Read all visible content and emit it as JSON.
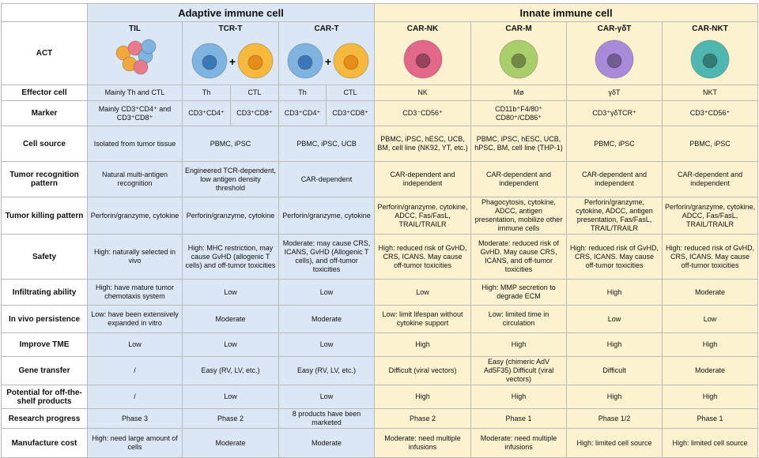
{
  "header": {
    "groups": [
      "Adaptive immune cell",
      "Innate immune cell"
    ],
    "corner": "ACT"
  },
  "table": {
    "columns": [
      "TIL",
      "TCR-T",
      "CAR-T",
      "CAR-NK",
      "CAR-M",
      "CAR-γδT",
      "CAR-NKT"
    ],
    "rows": [
      {
        "label": "Effector cell",
        "cells": [
          "Mainly Th and CTL",
          [
            "Th",
            "CTL"
          ],
          [
            "Th",
            "CTL"
          ],
          "NK",
          "Mø",
          "γδT",
          "NKT"
        ]
      },
      {
        "label": "Marker",
        "cells": [
          "Mainly CD3⁺CD4⁺ and CD3⁺CD8⁺",
          [
            "CD3⁺CD4⁺",
            "CD3⁺CD8⁺"
          ],
          [
            "CD3⁺CD4⁺",
            "CD3⁺CD8⁺"
          ],
          "CD3⁻CD56⁺",
          "CD11b⁺F4/80⁺ CD80⁺/CD86⁺",
          "CD3⁺γδTCR⁺",
          "CD3⁺CD56⁺"
        ]
      },
      {
        "label": "Cell source",
        "cells": [
          "Isolated from tumor tissue",
          "PBMC, iPSC",
          "PBMC, iPSC, UCB",
          "PBMC, iPSC, hESC, UCB, BM, cell line (NK92, YT, etc.)",
          "PBMC, iPSC, hESC, UCB, hPSC, BM, cell line (THP-1)",
          "PBMC, iPSC",
          "PBMC, iPSC"
        ]
      },
      {
        "label": "Tumor recognition pattern",
        "cells": [
          "Natural multi-antigen recognition",
          "Engineered TCR-dependent, low antigen density threshold",
          "CAR-dependent",
          "CAR-dependent and independent",
          "CAR-dependent and independent",
          "CAR-dependent and independent",
          "CAR-dependent and independent"
        ]
      },
      {
        "label": "Tumor killing pattern",
        "cells": [
          "Perforin/granzyme, cytokine",
          "Perforin/granzyme, cytokine",
          "Perforin/granzyme, cytokine",
          "Perforin/granzyme, cytokine, ADCC, Fas/FasL, TRAIL/TRAILR",
          "Phagocytosis, cytokine, ADCC, antigen presentation, mobilize other immune cells",
          "Perforin/granzyme, cytokine, ADCC, antigen presentation, Fas/FasL, TRAIL/TRAILR",
          "Perforin/granzyme, cytokine, ADCC, Fas/FasL, TRAIL/TRAILR"
        ]
      },
      {
        "label": "Safety",
        "cells": [
          "High: naturally selected in vivo",
          "High: MHC restriction, may cause GvHD (allogenic T cells) and off-tumor toxicities",
          "Moderate: may cause CRS, ICANS, GvHD (Allogenic T cells), and off-tumor toxicities",
          "High: reduced risk of GvHD, CRS, ICANS. May cause off-tumor toxicities",
          "Moderate: reduced risk of GvHD. May cause CRS, ICANS, and off-tumor toxicities",
          "High: reduced risk of GvHD, CRS, ICANS. May cause off-tumor toxicities",
          "High: reduced risk of GvHD, CRS, ICANS. May cause off-tumor toxicities"
        ]
      },
      {
        "label": "Infiltrating ability",
        "cells": [
          "High: have mature tumor chemotaxis system",
          "Low",
          "Low",
          "Low",
          "High: MMP secretion to degrade ECM",
          "High",
          "Moderate"
        ]
      },
      {
        "label": "In vivo persistence",
        "cells": [
          "Low: have been extensively expanded in vitro",
          "Moderate",
          "Moderate",
          "Low: limit lifespan without cytokine support",
          "Low: limited time in circulation",
          "Low",
          "Low"
        ]
      },
      {
        "label": "Improve TME",
        "cells": [
          "Low",
          "Low",
          "Low",
          "High",
          "High",
          "High",
          "High"
        ]
      },
      {
        "label": "Gene transfer",
        "cells": [
          "/",
          "Easy (RV, LV, etc.)",
          "Easy (RV, LV, etc.)",
          "Difficult (viral vectors)",
          "Easy (chimeric AdV Ad5F35) Difficult (viral vectors)",
          "Difficult",
          "Moderate"
        ]
      },
      {
        "label": "Potential for off-the-shelf products",
        "cells": [
          "/",
          "Low",
          "Low",
          "High",
          "High",
          "High",
          "High"
        ]
      },
      {
        "label": "Research progress",
        "cells": [
          "Phase 3",
          "Phase 2",
          "8 products have been marketed",
          "Phase 2",
          "Phase 1",
          "Phase 1/2",
          "Phase 1"
        ]
      },
      {
        "label": "Manufacture cost",
        "cells": [
          "High: need large amount of cells",
          "Moderate",
          "Moderate",
          "Moderate: need multiple infusions",
          "Moderate: need multiple infusions",
          "High: limited cell source",
          "High: limited cell source"
        ]
      }
    ]
  }
}
